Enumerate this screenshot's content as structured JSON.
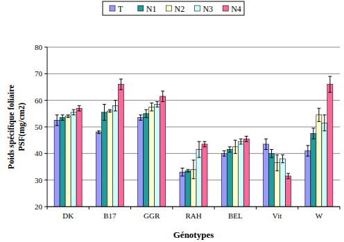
{
  "chart_data": {
    "type": "bar",
    "x_label": "Génotypes",
    "y_label": "Poids spécifique foliaire PSF(mg/cm2)",
    "categories": [
      "DK",
      "B17",
      "GGR",
      "RAH",
      "BEL",
      "Vit",
      "W"
    ],
    "series": [
      {
        "name": "T",
        "color": "#9999ff",
        "values": [
          52.5,
          48,
          53.5,
          33,
          40,
          43.5,
          41
        ],
        "errors": [
          2,
          0.5,
          1,
          1.5,
          1,
          2,
          2
        ]
      },
      {
        "name": "N1",
        "color": "#1f9e9e",
        "values": [
          53.5,
          55.5,
          55,
          33.5,
          41.5,
          40,
          47.5
        ],
        "errors": [
          1,
          3,
          1.5,
          0.5,
          1,
          1.5,
          2
        ]
      },
      {
        "name": "N2",
        "color": "#ffffcc",
        "values": [
          54,
          56,
          57.5,
          34,
          42.5,
          36.5,
          54.5
        ],
        "errors": [
          0.5,
          0.5,
          1.5,
          3.5,
          2.5,
          3,
          2.5
        ]
      },
      {
        "name": "N3",
        "color": "#ccffff",
        "values": [
          55.5,
          58,
          58.5,
          41.5,
          44.5,
          38,
          51.5
        ],
        "errors": [
          1,
          2,
          1,
          3,
          1,
          1.5,
          3
        ]
      },
      {
        "name": "N4",
        "color": "#ff6699",
        "values": [
          57,
          66,
          61.5,
          43.5,
          45.5,
          31.5,
          66
        ],
        "errors": [
          1,
          2,
          2,
          1,
          1,
          1,
          3
        ]
      }
    ],
    "ylim": [
      20,
      80
    ],
    "yticks": [
      20,
      30,
      40,
      50,
      60,
      70,
      80
    ],
    "grid": true,
    "legend": "top"
  }
}
